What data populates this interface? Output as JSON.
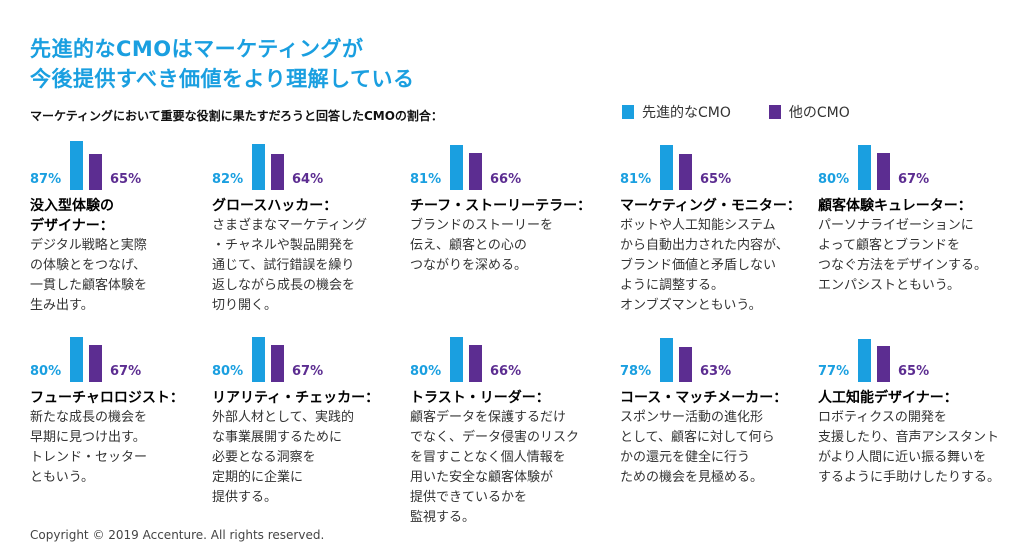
{
  "title_line1": "先進的なCMOはマーケティングが",
  "title_line2": "今後提供すべき価値をより理解している",
  "subtitle": "マーケティングにおいて重要な役割に果たすだろうと回答したCMOの割合：",
  "legend": [
    {
      "label": "先進的なCMO",
      "color": "#1a9fe0"
    },
    {
      "label": "他のCMO",
      "color": "#5c2d91"
    }
  ],
  "colors": {
    "advanced": "#1a9fe0",
    "other": "#5c2d91"
  },
  "copyright": "Copyright © 2019 Accenture. All rights reserved.",
  "chart_data": {
    "type": "bar",
    "categories": [
      "没入型体験のデザイナー",
      "グロースハッカー",
      "チーフ・ストーリーテラー",
      "マーケティング・モニター",
      "顧客体験キュレーター",
      "フューチャロロジスト",
      "リアリティ・チェッカー",
      "トラスト・リーダー",
      "コース・マッチメーカー",
      "人工知能デザイナー"
    ],
    "series": [
      {
        "name": "先進的なCMO",
        "values": [
          87,
          82,
          81,
          81,
          80,
          80,
          80,
          80,
          78,
          77
        ]
      },
      {
        "name": "他のCMO",
        "values": [
          65,
          64,
          66,
          65,
          67,
          67,
          67,
          66,
          63,
          65
        ]
      }
    ],
    "ylim": [
      0,
      100
    ]
  },
  "roles": [
    {
      "name_lines": [
        "没入型体験の",
        "デザイナー："
      ],
      "adv": "87%",
      "oth": "65%",
      "desc": [
        "デジタル戦略と実際",
        "の体験とをつなげ、",
        "一貫した顧客体験を",
        "生み出す。"
      ]
    },
    {
      "name_lines": [
        "グロースハッカー："
      ],
      "adv": "82%",
      "oth": "64%",
      "desc": [
        "さまざまなマーケティング",
        "・チャネルや製品開発を",
        "通じて、試行錯誤を繰り",
        "返しながら成長の機会を",
        "切り開く。"
      ]
    },
    {
      "name_lines": [
        "チーフ・ストーリーテラー："
      ],
      "adv": "81%",
      "oth": "66%",
      "desc": [
        "ブランドのストーリーを",
        "伝え、顧客との心の",
        "つながりを深める。"
      ]
    },
    {
      "name_lines": [
        "マーケティング・モニター："
      ],
      "adv": "81%",
      "oth": "65%",
      "desc": [
        "ボットや人工知能システム",
        "から自動出力された内容が、",
        "ブランド価値と矛盾しない",
        "ように調整する。",
        "オンブズマンともいう。"
      ]
    },
    {
      "name_lines": [
        "顧客体験キュレーター："
      ],
      "adv": "80%",
      "oth": "67%",
      "desc": [
        "パーソナライゼーションに",
        "よって顧客とブランドを",
        "つなぐ方法をデザインする。",
        "エンパシストともいう。"
      ]
    },
    {
      "name_lines": [
        "フューチャロロジスト："
      ],
      "adv": "80%",
      "oth": "67%",
      "desc": [
        "新たな成長の機会を",
        "早期に見つけ出す。",
        "トレンド・セッター",
        "ともいう。"
      ]
    },
    {
      "name_lines": [
        "リアリティ・チェッカー："
      ],
      "adv": "80%",
      "oth": "67%",
      "desc": [
        "外部人材として、実践的",
        "な事業展開するために",
        "必要となる洞察を",
        "定期的に企業に",
        "提供する。"
      ]
    },
    {
      "name_lines": [
        "トラスト・リーダー："
      ],
      "adv": "80%",
      "oth": "66%",
      "desc": [
        "顧客データを保護するだけ",
        "でなく、データ侵害のリスク",
        "を冒すことなく個人情報を",
        "用いた安全な顧客体験が",
        "提供できているかを",
        "監視する。"
      ]
    },
    {
      "name_lines": [
        "コース・マッチメーカー："
      ],
      "adv": "78%",
      "oth": "63%",
      "desc": [
        "スポンサー活動の進化形",
        "として、顧客に対して何ら",
        "かの還元を健全に行う",
        "ための機会を見極める。"
      ]
    },
    {
      "name_lines": [
        "人工知能デザイナー："
      ],
      "adv": "77%",
      "oth": "65%",
      "desc": [
        "ロボティクスの開発を",
        "支援したり、音声アシスタント",
        "がより人間に近い振る舞いを",
        "するように手助けしたりする。"
      ]
    }
  ]
}
